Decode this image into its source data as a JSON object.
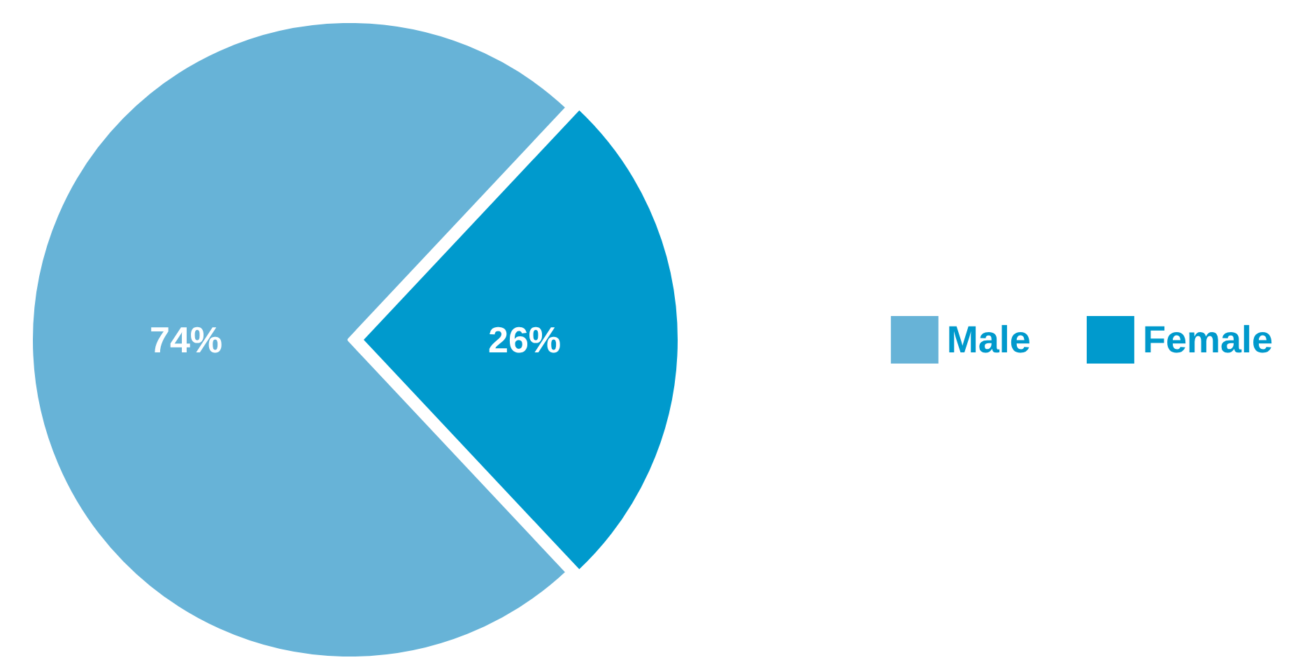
{
  "chart_data": {
    "type": "pie",
    "categories": [
      "Male",
      "Female"
    ],
    "values": [
      74,
      26
    ],
    "colors": [
      "#67b3d7",
      "#009acd"
    ],
    "value_labels": [
      "74%",
      "26%"
    ],
    "legend": "right"
  }
}
